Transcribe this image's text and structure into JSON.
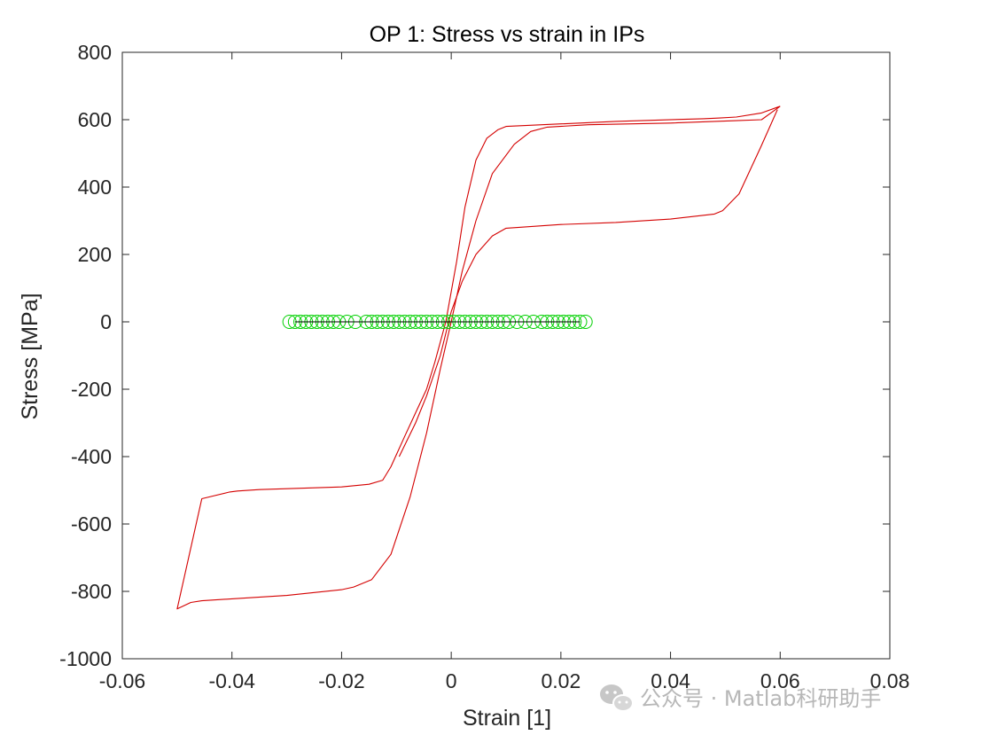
{
  "chart_data": {
    "type": "line",
    "title": "OP 1: Stress vs strain in IPs",
    "xlabel": "Strain [1]",
    "ylabel": "Stress [MPa]",
    "xlim": [
      -0.06,
      0.08
    ],
    "ylim": [
      -1000,
      800
    ],
    "xticks": [
      -0.06,
      -0.04,
      -0.02,
      0,
      0.02,
      0.04,
      0.06,
      0.08
    ],
    "xtick_labels": [
      "-0.06",
      "-0.04",
      "-0.02",
      "0",
      "0.02",
      "0.04",
      "0.06",
      "0.08"
    ],
    "yticks": [
      -1000,
      -800,
      -600,
      -400,
      -200,
      0,
      200,
      400,
      600,
      800
    ],
    "ytick_labels": [
      "-1000",
      "-800",
      "-600",
      "-400",
      "-200",
      "0",
      "200",
      "400",
      "600",
      "800"
    ],
    "grid": false,
    "box": true,
    "series": [
      {
        "kind": "line",
        "color": "#d40000",
        "x": [
          0.06,
          0.0566,
          0.052,
          0.049,
          0.046,
          0.03,
          0.01,
          0.0085,
          0.0065,
          0.0045,
          0.0025,
          0.001,
          -0.001,
          -0.003,
          -0.0045,
          -0.0065,
          -0.0085,
          -0.011,
          -0.0125,
          -0.015,
          -0.02,
          -0.035,
          -0.039,
          -0.0404,
          -0.0455,
          -0.05,
          -0.0475,
          -0.0455,
          -0.04,
          -0.03,
          -0.02,
          -0.0178,
          -0.0145,
          -0.011,
          -0.0075,
          -0.0045,
          -0.002,
          0,
          0.002,
          0.0045,
          0.0075,
          0.0115,
          0.0145,
          0.0175,
          0.025,
          0.04,
          0.052,
          0.0566,
          0.06
        ],
        "y": [
          640,
          620,
          608,
          605,
          603,
          595,
          580,
          570,
          545,
          480,
          340,
          180,
          0,
          -120,
          -200,
          -270,
          -340,
          -430,
          -470,
          -482,
          -490,
          -498,
          -502,
          -505,
          -525,
          -852,
          -833,
          -828,
          -822,
          -812,
          -795,
          -787,
          -765,
          -690,
          -520,
          -330,
          -140,
          0,
          150,
          300,
          440,
          527,
          565,
          578,
          585,
          590,
          597,
          600,
          640
        ]
      },
      {
        "kind": "line",
        "color": "#d40000",
        "x": [
          0.0595,
          0.0565,
          0.0525,
          0.0495,
          0.048,
          0.04,
          0.03,
          0.02,
          0.01,
          0.0075,
          0.0045,
          0.002,
          0,
          -0.002,
          -0.0045,
          -0.0065,
          -0.0095
        ],
        "y": [
          630,
          520,
          380,
          330,
          320,
          305,
          295,
          289,
          278,
          255,
          200,
          120,
          30,
          -100,
          -220,
          -300,
          -400
        ]
      },
      {
        "kind": "markers",
        "marker": "circle",
        "color": "#00d000",
        "x": [
          -0.0295,
          -0.0285,
          -0.0275,
          -0.0265,
          -0.0255,
          -0.0245,
          -0.0235,
          -0.0225,
          -0.0215,
          -0.0205,
          -0.019,
          -0.0175,
          -0.0155,
          -0.0145,
          -0.0135,
          -0.0125,
          -0.0115,
          -0.0105,
          -0.0095,
          -0.0085,
          -0.0075,
          -0.0065,
          -0.0055,
          -0.0045,
          -0.0035,
          -0.0025,
          -0.0015,
          -0.0005,
          0.0005,
          0.0015,
          0.0025,
          0.0035,
          0.0045,
          0.0055,
          0.0065,
          0.0075,
          0.0085,
          0.0095,
          0.0105,
          0.012,
          0.0135,
          0.015,
          0.0165,
          0.0175,
          0.0185,
          0.0195,
          0.0205,
          0.0215,
          0.0225,
          0.0235,
          0.0245
        ],
        "y": [
          0,
          0,
          0,
          0,
          0,
          0,
          0,
          0,
          0,
          0,
          0,
          0,
          0,
          0,
          0,
          0,
          0,
          0,
          0,
          0,
          0,
          0,
          0,
          0,
          0,
          0,
          0,
          0,
          0,
          0,
          0,
          0,
          0,
          0,
          0,
          0,
          0,
          0,
          0,
          0,
          0,
          0,
          0,
          0,
          0,
          0,
          0,
          0,
          0,
          0,
          0
        ]
      },
      {
        "kind": "line",
        "color": "#000000",
        "x": [
          -0.0285,
          0.0235
        ],
        "y": [
          0,
          0
        ]
      }
    ]
  },
  "watermark": {
    "text": "公众号 · Matlab科研助手",
    "icon": "wechat-icon"
  }
}
